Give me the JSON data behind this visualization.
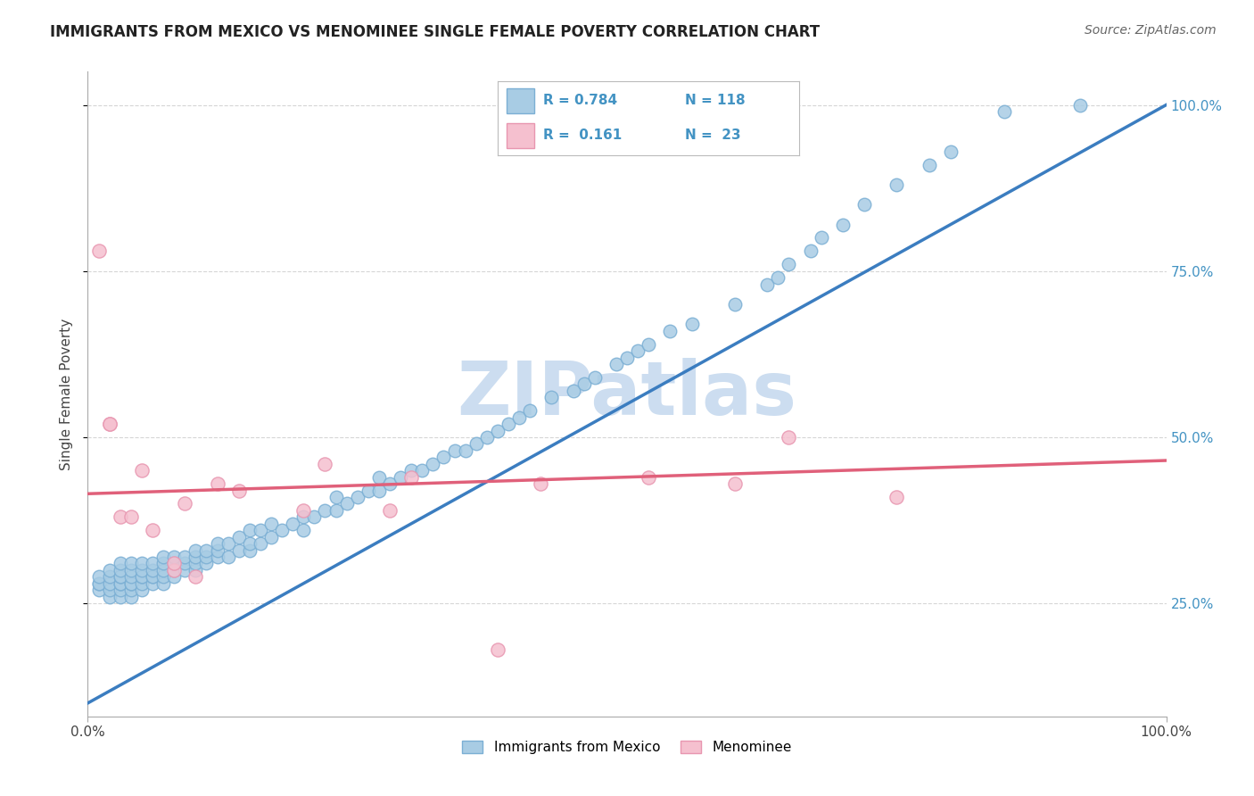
{
  "title": "IMMIGRANTS FROM MEXICO VS MENOMINEE SINGLE FEMALE POVERTY CORRELATION CHART",
  "source": "Source: ZipAtlas.com",
  "ylabel": "Single Female Poverty",
  "right_yticks": [
    "25.0%",
    "50.0%",
    "75.0%",
    "100.0%"
  ],
  "right_ytick_vals": [
    0.25,
    0.5,
    0.75,
    1.0
  ],
  "legend_r1": "R = 0.784",
  "legend_n1": "N = 118",
  "legend_r2": "R = 0.161",
  "legend_n2": "N =  23",
  "blue_color": "#a8cce4",
  "blue_edge_color": "#7bafd4",
  "pink_color": "#f5c0cf",
  "pink_edge_color": "#e896b0",
  "blue_line_color": "#3b7dc0",
  "pink_line_color": "#e0607a",
  "legend_text_color": "#4393c3",
  "watermark": "ZIPatlas",
  "watermark_color": "#ccddf0",
  "xlim": [
    0.0,
    1.0
  ],
  "ylim": [
    0.08,
    1.05
  ],
  "blue_line_x0": 0.0,
  "blue_line_y0": 0.1,
  "blue_line_x1": 1.0,
  "blue_line_y1": 1.0,
  "pink_line_x0": 0.0,
  "pink_line_y0": 0.415,
  "pink_line_x1": 1.0,
  "pink_line_y1": 0.465,
  "grid_color": "#cccccc",
  "grid_style": "--",
  "blue_scatter_x": [
    0.01,
    0.01,
    0.01,
    0.01,
    0.02,
    0.02,
    0.02,
    0.02,
    0.02,
    0.03,
    0.03,
    0.03,
    0.03,
    0.03,
    0.03,
    0.03,
    0.03,
    0.04,
    0.04,
    0.04,
    0.04,
    0.04,
    0.04,
    0.04,
    0.05,
    0.05,
    0.05,
    0.05,
    0.05,
    0.05,
    0.06,
    0.06,
    0.06,
    0.06,
    0.06,
    0.07,
    0.07,
    0.07,
    0.07,
    0.07,
    0.08,
    0.08,
    0.08,
    0.08,
    0.09,
    0.09,
    0.09,
    0.1,
    0.1,
    0.1,
    0.1,
    0.11,
    0.11,
    0.11,
    0.12,
    0.12,
    0.12,
    0.13,
    0.13,
    0.14,
    0.14,
    0.15,
    0.15,
    0.15,
    0.16,
    0.16,
    0.17,
    0.17,
    0.18,
    0.19,
    0.2,
    0.2,
    0.21,
    0.22,
    0.23,
    0.23,
    0.24,
    0.25,
    0.26,
    0.27,
    0.27,
    0.28,
    0.29,
    0.3,
    0.31,
    0.32,
    0.33,
    0.34,
    0.35,
    0.36,
    0.37,
    0.38,
    0.39,
    0.4,
    0.41,
    0.43,
    0.45,
    0.46,
    0.47,
    0.49,
    0.5,
    0.51,
    0.52,
    0.54,
    0.56,
    0.6,
    0.63,
    0.64,
    0.65,
    0.67,
    0.68,
    0.7,
    0.72,
    0.75,
    0.78,
    0.8,
    0.85,
    0.92
  ],
  "blue_scatter_y": [
    0.27,
    0.28,
    0.28,
    0.29,
    0.26,
    0.27,
    0.28,
    0.29,
    0.3,
    0.26,
    0.27,
    0.28,
    0.28,
    0.29,
    0.29,
    0.3,
    0.31,
    0.26,
    0.27,
    0.28,
    0.28,
    0.29,
    0.3,
    0.31,
    0.27,
    0.28,
    0.29,
    0.29,
    0.3,
    0.31,
    0.28,
    0.29,
    0.29,
    0.3,
    0.31,
    0.28,
    0.29,
    0.3,
    0.31,
    0.32,
    0.29,
    0.3,
    0.31,
    0.32,
    0.3,
    0.31,
    0.32,
    0.3,
    0.31,
    0.32,
    0.33,
    0.31,
    0.32,
    0.33,
    0.32,
    0.33,
    0.34,
    0.32,
    0.34,
    0.33,
    0.35,
    0.33,
    0.34,
    0.36,
    0.34,
    0.36,
    0.35,
    0.37,
    0.36,
    0.37,
    0.36,
    0.38,
    0.38,
    0.39,
    0.39,
    0.41,
    0.4,
    0.41,
    0.42,
    0.42,
    0.44,
    0.43,
    0.44,
    0.45,
    0.45,
    0.46,
    0.47,
    0.48,
    0.48,
    0.49,
    0.5,
    0.51,
    0.52,
    0.53,
    0.54,
    0.56,
    0.57,
    0.58,
    0.59,
    0.61,
    0.62,
    0.63,
    0.64,
    0.66,
    0.67,
    0.7,
    0.73,
    0.74,
    0.76,
    0.78,
    0.8,
    0.82,
    0.85,
    0.88,
    0.91,
    0.93,
    0.99,
    1.0
  ],
  "pink_scatter_x": [
    0.01,
    0.02,
    0.02,
    0.03,
    0.04,
    0.05,
    0.06,
    0.08,
    0.08,
    0.09,
    0.1,
    0.12,
    0.14,
    0.2,
    0.22,
    0.28,
    0.3,
    0.38,
    0.42,
    0.52,
    0.6,
    0.65,
    0.75
  ],
  "pink_scatter_y": [
    0.78,
    0.52,
    0.52,
    0.38,
    0.38,
    0.45,
    0.36,
    0.3,
    0.31,
    0.4,
    0.29,
    0.43,
    0.42,
    0.39,
    0.46,
    0.39,
    0.44,
    0.18,
    0.43,
    0.44,
    0.43,
    0.5,
    0.41
  ]
}
